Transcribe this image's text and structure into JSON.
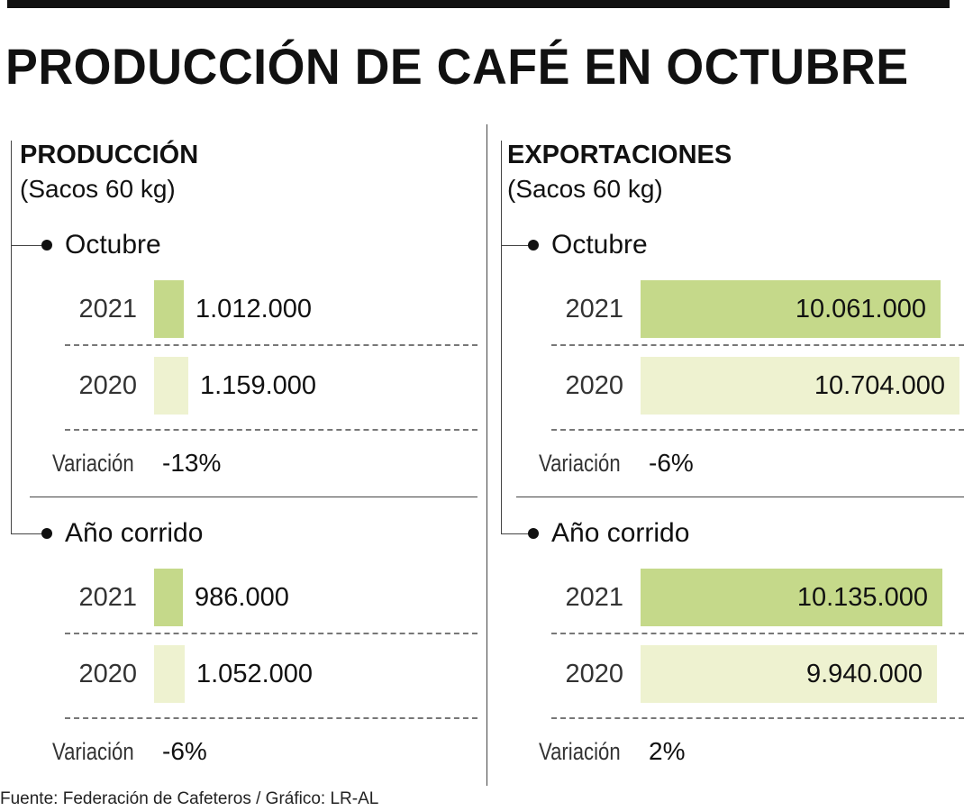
{
  "title": "PRODUCCIÓN DE CAFÉ EN OCTUBRE",
  "footer": "Fuente: Federación de Cafeteros / Gráfico: LR-AL",
  "colors": {
    "bar_2021": "#c5d98a",
    "bar_2020": "#eef2d0"
  },
  "chart_data": [
    {
      "type": "bar",
      "orientation": "horizontal",
      "title": "PRODUCCIÓN",
      "subtitle": "(Sacos 60 kg)",
      "sections": [
        {
          "label": "Octubre",
          "rows": [
            {
              "year": "2021",
              "value": 1012000,
              "label": "1.012.000"
            },
            {
              "year": "2020",
              "value": 1159000,
              "label": "1.159.000"
            }
          ],
          "variation_label": "Variación",
          "variation": "-13%"
        },
        {
          "label": "Año corrido",
          "rows": [
            {
              "year": "2021",
              "value": 986000,
              "label": "986.000"
            },
            {
              "year": "2020",
              "value": 1052000,
              "label": "1.052.000"
            }
          ],
          "variation_label": "Variación",
          "variation": "-6%"
        }
      ]
    },
    {
      "type": "bar",
      "orientation": "horizontal",
      "title": "EXPORTACIONES",
      "subtitle": "(Sacos 60 kg)",
      "sections": [
        {
          "label": "Octubre",
          "rows": [
            {
              "year": "2021",
              "value": 10061000,
              "label": "10.061.000"
            },
            {
              "year": "2020",
              "value": 10704000,
              "label": "10.704.000"
            }
          ],
          "variation_label": "Variación",
          "variation": "-6%"
        },
        {
          "label": "Año corrido",
          "rows": [
            {
              "year": "2021",
              "value": 10135000,
              "label": "10.135.000"
            },
            {
              "year": "2020",
              "value": 9940000,
              "label": "9.940.000"
            }
          ],
          "variation_label": "Variación",
          "variation": "2%"
        }
      ]
    }
  ]
}
